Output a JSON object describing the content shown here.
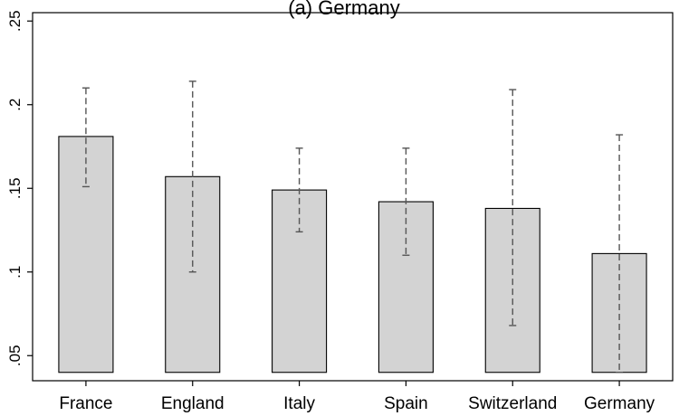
{
  "chart_data": {
    "type": "bar",
    "title": "(a) Germany",
    "categories": [
      "France",
      "England",
      "Italy",
      "Spain",
      "Switzerland",
      "Germany"
    ],
    "values": [
      0.181,
      0.157,
      0.149,
      0.142,
      0.138,
      0.111
    ],
    "error_low": [
      0.151,
      0.1,
      0.124,
      0.11,
      0.068,
      0.04
    ],
    "error_high": [
      0.21,
      0.214,
      0.174,
      0.174,
      0.209,
      0.182
    ],
    "bar_base": 0.04,
    "ylim": [
      0.035,
      0.255
    ],
    "yticks": [
      0.05,
      0.1,
      0.15,
      0.2,
      0.25
    ],
    "ytick_labels": [
      ".05",
      ".1",
      ".15",
      ".2",
      ".25"
    ],
    "xlabel": "",
    "ylabel": "",
    "grid": false,
    "colors": {
      "bar_fill": "#d3d3d3",
      "bar_edge": "#000000",
      "error_bar": "#555555"
    }
  }
}
